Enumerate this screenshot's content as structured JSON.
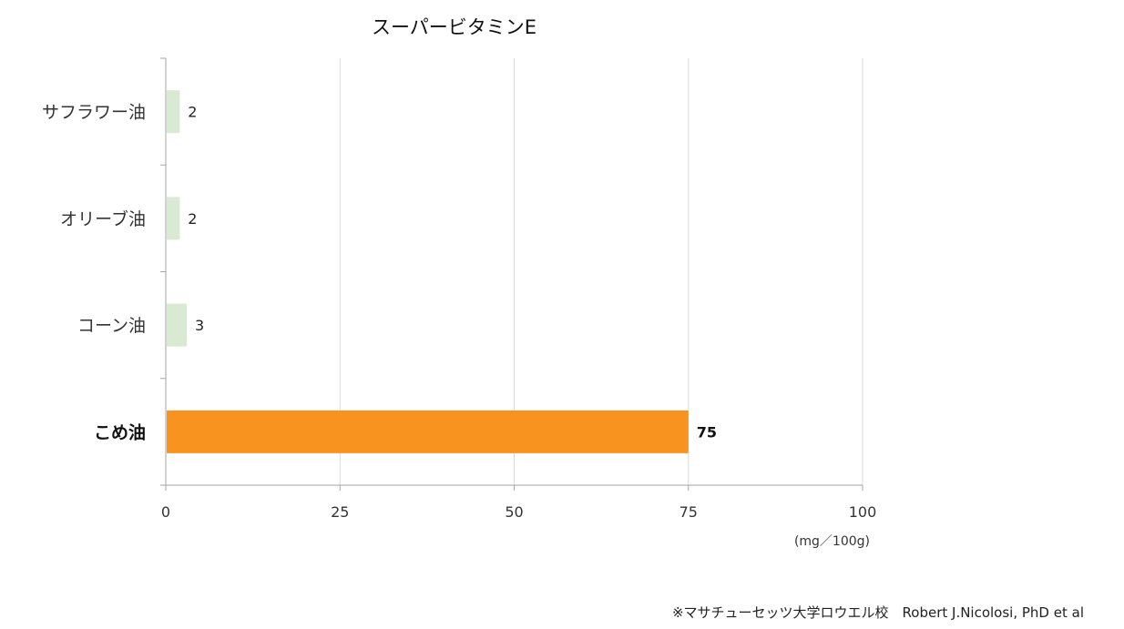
{
  "chart_data": {
    "type": "bar",
    "orientation": "horizontal",
    "title": "スーパービタミンE",
    "categories": [
      "サフラワー油",
      "オリーブ油",
      "コーン油",
      "こめ油"
    ],
    "values": [
      2,
      2,
      3,
      75
    ],
    "highlight_index": 3,
    "xlim": [
      0,
      100
    ],
    "x_ticks": [
      0,
      25,
      50,
      75,
      100
    ],
    "unit_label": "(mg／100g)",
    "grid": "vertical",
    "colors": {
      "bar": "#d9ead3",
      "highlight": "#f7931e",
      "grid": "#d9d9d9",
      "axis": "#a6a6a6"
    }
  },
  "source_note": "※マサチューセッツ大学ロウエル校　Robert J.Nicolosi, PhD et al"
}
